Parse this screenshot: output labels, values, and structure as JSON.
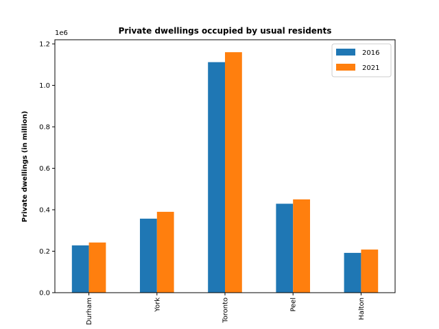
{
  "chart_data": {
    "type": "bar",
    "title": "Private dwellings occupied by usual residents",
    "xlabel": "",
    "ylabel": "Private dwellings (in million)",
    "offset_label": "1e6",
    "categories": [
      "Durham",
      "York",
      "Toronto",
      "Peel",
      "Halton"
    ],
    "series": [
      {
        "name": "2016",
        "color": "#1f77b4",
        "values": [
          228000,
          357000,
          1112000,
          429000,
          192000
        ]
      },
      {
        "name": "2021",
        "color": "#ff7f0e",
        "values": [
          242000,
          390000,
          1160000,
          450000,
          208000
        ]
      }
    ],
    "ylim": [
      0,
      1220000
    ],
    "yticks": [
      0,
      200000,
      400000,
      600000,
      800000,
      1000000,
      1200000
    ],
    "ytick_labels": [
      "0.0",
      "0.2",
      "0.4",
      "0.6",
      "0.8",
      "1.0",
      "1.2"
    ],
    "legend_position": "top-right",
    "grid": false
  }
}
